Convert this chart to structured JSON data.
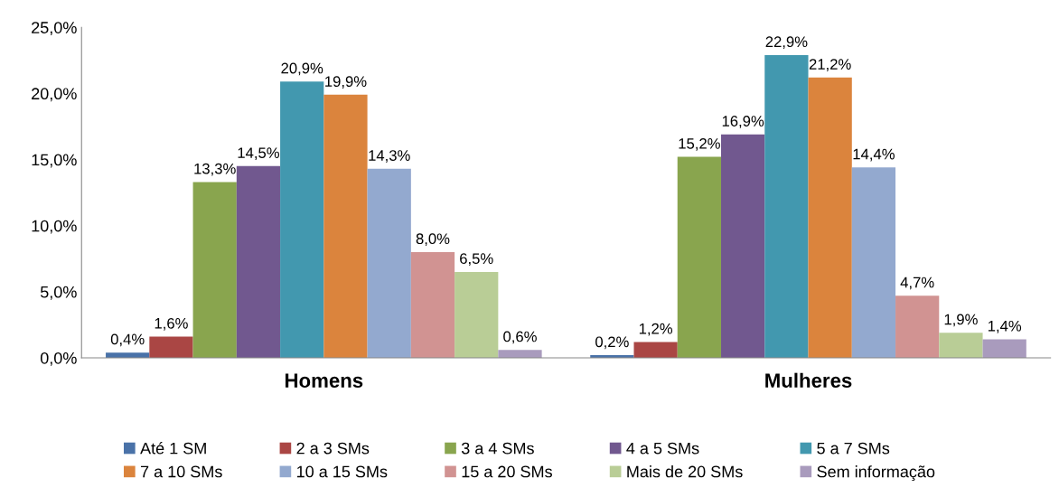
{
  "chart_data": {
    "type": "bar",
    "categories": [
      "Homens",
      "Mulheres"
    ],
    "ylim": [
      0,
      25
    ],
    "yticks": [
      {
        "value": 0,
        "label": "0,0%"
      },
      {
        "value": 5,
        "label": "5,0%"
      },
      {
        "value": 10,
        "label": "10,0%"
      },
      {
        "value": 15,
        "label": "15,0%"
      },
      {
        "value": 20,
        "label": "20,0%"
      },
      {
        "value": 25,
        "label": "25,0%"
      }
    ],
    "grid": false,
    "legend": "bottom",
    "series": [
      {
        "name": "Até 1 SM",
        "color": "#4a72a8",
        "values": [
          0.4,
          0.2
        ],
        "value_labels": [
          "0,4%",
          "0,2%"
        ]
      },
      {
        "name": "2 a 3 SMs",
        "color": "#aa4644",
        "values": [
          1.6,
          1.2
        ],
        "value_labels": [
          "1,6%",
          "1,2%"
        ]
      },
      {
        "name": "3 a 4 SMs",
        "color": "#89a54e",
        "values": [
          13.3,
          15.2
        ],
        "value_labels": [
          "13,3%",
          "15,2%"
        ]
      },
      {
        "name": "4 a 5 SMs",
        "color": "#71588f",
        "values": [
          14.5,
          16.9
        ],
        "value_labels": [
          "14,5%",
          "16,9%"
        ]
      },
      {
        "name": "5 a 7 SMs",
        "color": "#4298af",
        "values": [
          20.9,
          22.9
        ],
        "value_labels": [
          "20,9%",
          "22,9%"
        ]
      },
      {
        "name": "7 a 10 SMs",
        "color": "#db843d",
        "values": [
          19.9,
          21.2
        ],
        "value_labels": [
          "19,9%",
          "21,2%"
        ]
      },
      {
        "name": "10 a 15 SMs",
        "color": "#93a9cf",
        "values": [
          14.3,
          14.4
        ],
        "value_labels": [
          "14,3%",
          "14,4%"
        ]
      },
      {
        "name": "15 a 20 SMs",
        "color": "#d19392",
        "values": [
          8.0,
          4.7
        ],
        "value_labels": [
          "8,0%",
          "4,7%"
        ]
      },
      {
        "name": "Mais de 20 SMs",
        "color": "#b9cd96",
        "values": [
          6.5,
          1.9
        ],
        "value_labels": [
          "6,5%",
          "1,9%"
        ]
      },
      {
        "name": "Sem informação",
        "color": "#a99bbd",
        "values": [
          0.6,
          1.4
        ],
        "value_labels": [
          "0,6%",
          "1,4%"
        ]
      }
    ]
  }
}
